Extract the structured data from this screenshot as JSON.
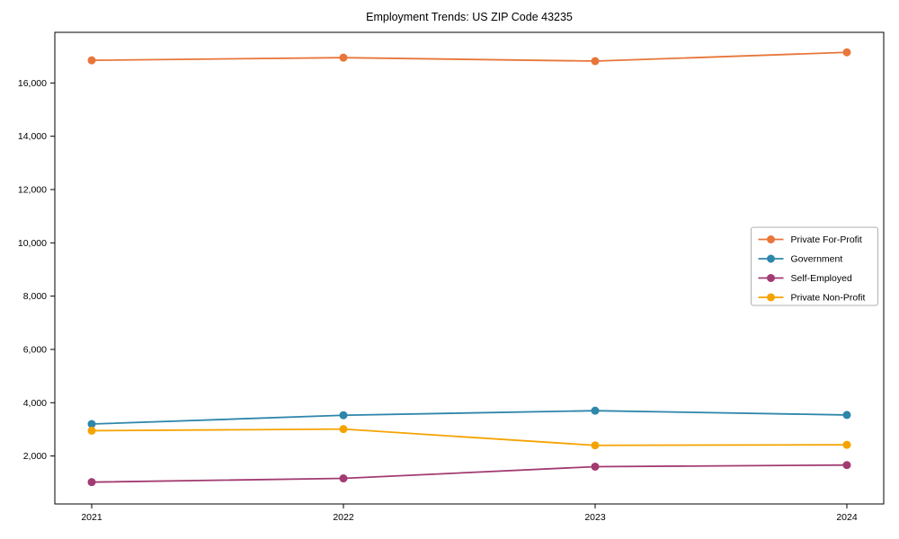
{
  "chart_data": {
    "type": "line",
    "title": "Employment Trends: US ZIP Code 43235",
    "xlabel": "",
    "ylabel": "",
    "categories": [
      "2021",
      "2022",
      "2023",
      "2024"
    ],
    "series": [
      {
        "name": "Private For-Profit",
        "color": "#E8763A",
        "values": [
          16850,
          16950,
          16820,
          17150
        ]
      },
      {
        "name": "Government",
        "color": "#2E86AB",
        "values": [
          3200,
          3530,
          3700,
          3540
        ]
      },
      {
        "name": "Self-Employed",
        "color": "#A23B72",
        "values": [
          1020,
          1160,
          1600,
          1660
        ]
      },
      {
        "name": "Private Non-Profit",
        "color": "#F5A301",
        "values": [
          2950,
          3010,
          2400,
          2420
        ]
      }
    ],
    "yticks": [
      2000,
      4000,
      6000,
      8000,
      10000,
      12000,
      14000,
      16000
    ],
    "ylim": [
      200,
      17900
    ],
    "grid": false,
    "legend_position": "right",
    "frame": "full-box",
    "colors": {
      "axis": "#000000",
      "background": "#ffffff",
      "legend_border": "#b0b0b0"
    }
  }
}
